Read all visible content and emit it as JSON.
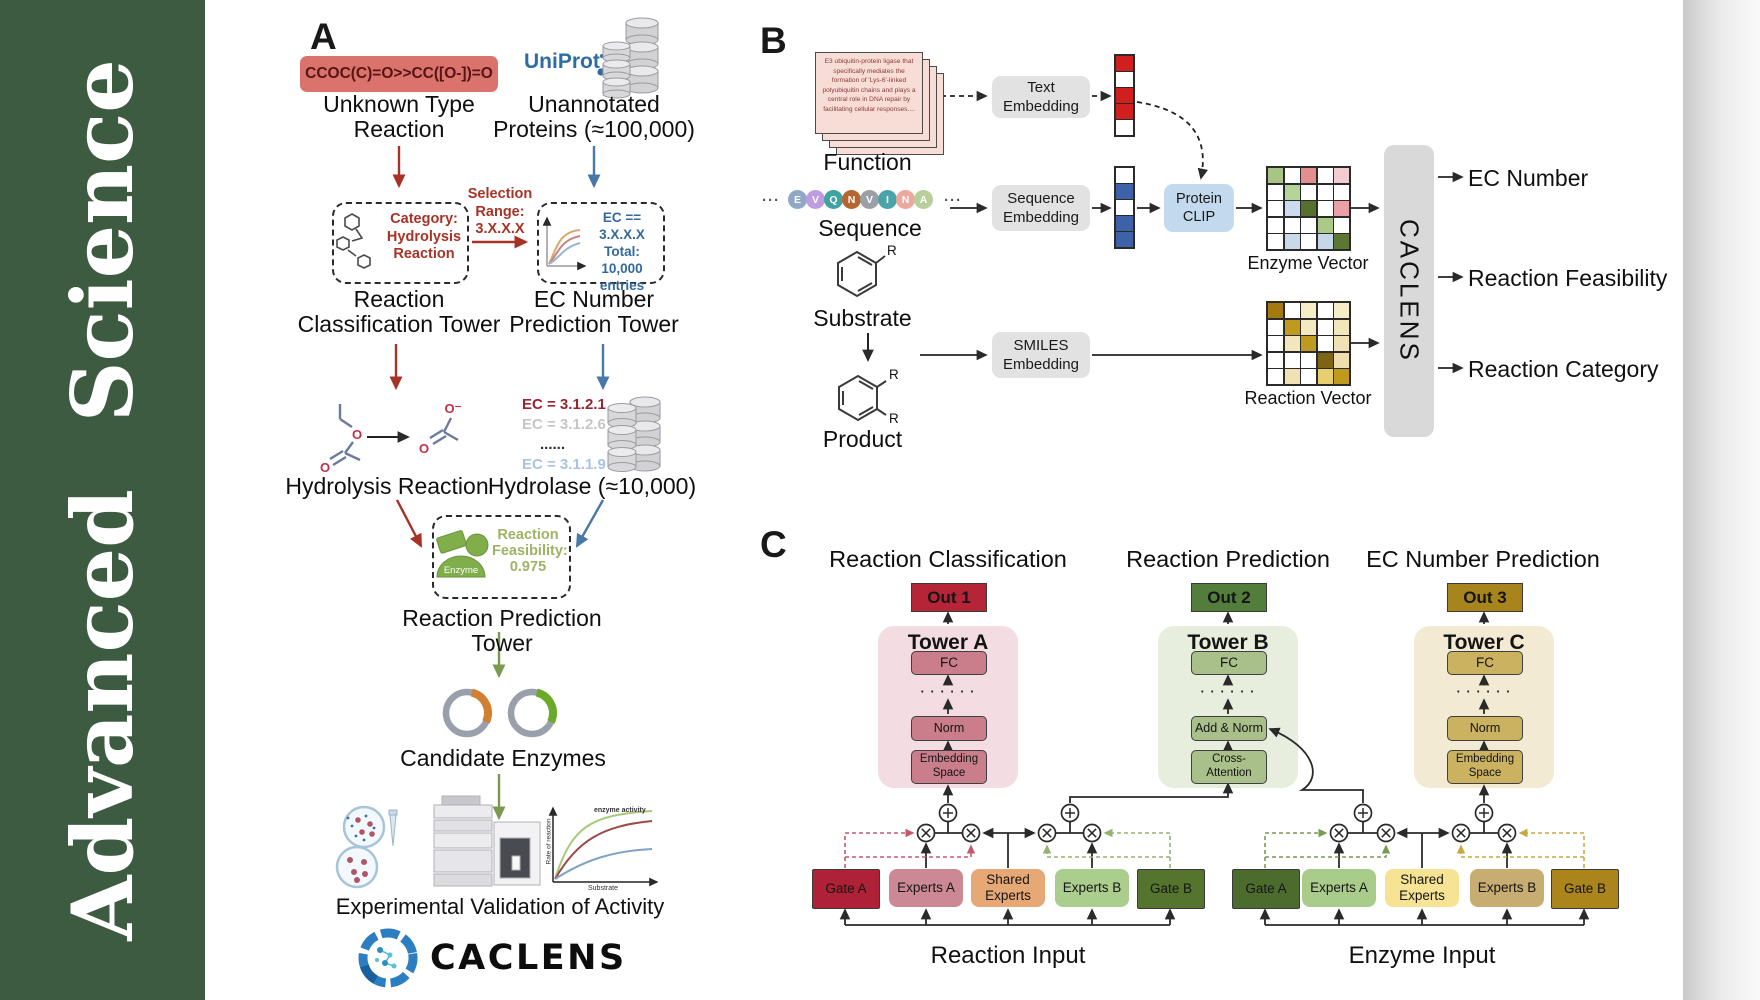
{
  "sidebar": {
    "journal": "Advanced Science",
    "bg": "#3d5b40"
  },
  "panelA": {
    "label": "A",
    "smiles": "CCOC(C)=O>>CC([O-])=O",
    "smiles_bg": "#d9736c",
    "unknown": [
      "Unknown Type",
      "Reaction"
    ],
    "uniprot": "UniProt",
    "unannotated": [
      "Unannotated",
      "Proteins (≈100,000)"
    ],
    "selection": [
      "Selection",
      "Range:",
      "3.X.X.X"
    ],
    "category": [
      "Category:",
      "Hydrolysis",
      "Reaction"
    ],
    "ec_box": [
      "EC == 3.X.X.X",
      "Total: 10,000",
      "entries"
    ],
    "tower_left": [
      "Reaction",
      "Classification Tower"
    ],
    "tower_right": [
      "EC Number",
      "Prediction Tower"
    ],
    "ec_list": [
      "EC = 3.1.2.1",
      "EC = 3.1.2.6",
      "......",
      "EC = 3.1.1.9"
    ],
    "ec_list_colors": [
      "#9b2430",
      "#c6c6c6",
      "#2a2a2a",
      "#a9c4e2"
    ],
    "hydrolysis": "Hydrolysis Reaction",
    "hydrolase": "Hydrolase (≈10,000)",
    "enzyme": "Enzyme",
    "feasibility": [
      "Reaction",
      "Feasibility:",
      "0.975"
    ],
    "tower_mid": "Reaction Prediction Tower",
    "candidate": "Candidate Enzymes",
    "graph": {
      "series": "enzyme activity",
      "ylabel": "Rate of reaction",
      "xlabel": "Substrate"
    },
    "validation": "Experimental Validation of Activity",
    "logo": "CACLENS",
    "atoms": {
      "o": "O",
      "o_minus": "O⁻"
    }
  },
  "panelB": {
    "label": "B",
    "card": "E3 ubiquitin-protein ligase that specifically mediates the formation of 'Lys-6'-linked polyubiquitin chains and plays a central role in DNA repair by facilitating cellular responses....",
    "function": "Function",
    "dots": "···",
    "residues": [
      "E",
      "V",
      "Q",
      "N",
      "V",
      "I",
      "N",
      "A"
    ],
    "residue_colors": [
      "#8fa8c8",
      "#bf9bdf",
      "#3fa3a0",
      "#b5652f",
      "#9aa0a6",
      "#4aa3a8",
      "#eca89c",
      "#b9cf9b"
    ],
    "sequence": "Sequence",
    "substrate": "Substrate",
    "product": "Product",
    "r": "R",
    "text_embedding": [
      "Text",
      "Embedding"
    ],
    "sequence_embedding": [
      "Sequence",
      "Embedding"
    ],
    "smiles_embedding": [
      "SMILES",
      "Embedding"
    ],
    "protein_clip": [
      "Protein",
      "CLIP"
    ],
    "embed_color": "#e2e2e2",
    "clip_color": "#c3d9ee",
    "caclens_color": "#d9d9d9",
    "text_vec": [
      "#cf1f1f",
      "#ffffff",
      "#cf1f1f",
      "#cf1f1f",
      "#ffffff"
    ],
    "seq_vec": [
      "#ffffff",
      "#3e62a8",
      "#ffffff",
      "#3e62a8",
      "#3e62a8"
    ],
    "enzyme_grid": [
      "#a9c583",
      "#ffffff",
      "#e48f8f",
      "#ffffff",
      "#f3cdd1",
      "#ffffff",
      "#b3d59a",
      "#ffffff",
      "#ffffff",
      "#ffffff",
      "#ffffff",
      "#ccdcee",
      "#55702f",
      "#ffffff",
      "#e9a0a6",
      "#ffffff",
      "#ffffff",
      "#ffffff",
      "#abc987",
      "#ffffff",
      "#ffffff",
      "#c9d9ea",
      "#ffffff",
      "#c4d6e8",
      "#5b7733"
    ],
    "reaction_grid": [
      "#a47a10",
      "#ffffff",
      "#f6ecc8",
      "#ffffff",
      "#f6ecc8",
      "#ffffff",
      "#bf9a1e",
      "#f4e8c0",
      "#ffffff",
      "#f2e6bc",
      "#ffffff",
      "#f2e6bc",
      "#bf9a1e",
      "#ffffff",
      "#f0e2b4",
      "#ffffff",
      "#ffffff",
      "#ffffff",
      "#7c6414",
      "#eeddae",
      "#ffffff",
      "#f0e2b4",
      "#ffffff",
      "#e7cf6e",
      "#bf9a1e"
    ],
    "enzyme_vector": "Enzyme Vector",
    "reaction_vector": "Reaction Vector",
    "caclens": "CACLENS",
    "outputs": [
      "EC Number",
      "Reaction Feasibility",
      "Reaction Category"
    ]
  },
  "panelC": {
    "label": "C",
    "towers": [
      {
        "header": "Reaction Classification",
        "out": "Out 1",
        "out_color": "#b62537",
        "name": "Tower A",
        "bg": "#f3dde2",
        "box_color": "#ca7d8b",
        "fc": "FC",
        "dots": "· · · · · ·",
        "mid": "Norm",
        "bottom1": "Embedding",
        "bottom2": "Space"
      },
      {
        "header": "Reaction Prediction",
        "out": "Out 2",
        "out_color": "#537d3b",
        "name": "Tower B",
        "bg": "#e7eede",
        "box_color": "#a9c08b",
        "fc": "FC",
        "dots": "· · · · · ·",
        "mid": "Add & Norm",
        "bottom1": "Cross-",
        "bottom2": "Attention"
      },
      {
        "header": "EC Number Prediction",
        "out": "Out 3",
        "out_color": "#a8851c",
        "name": "Tower C",
        "bg": "#f2ead3",
        "box_color": "#cbb260",
        "fc": "FC",
        "dots": "· · · · · ·",
        "mid": "Norm",
        "bottom1": "Embedding",
        "bottom2": "Space"
      }
    ],
    "groups": [
      {
        "label": "Reaction Input",
        "boxes": [
          "Gate A",
          "Experts A",
          "Shared Experts",
          "Experts B",
          "Gate B"
        ],
        "box_colors": [
          "#ae2136",
          "#cc8995",
          "#e6a875",
          "#abcd8d",
          "#55752f"
        ]
      },
      {
        "label": "Enzyme Input",
        "boxes": [
          "Gate A",
          "Experts A",
          "Shared Experts",
          "Experts B",
          "Gate B"
        ],
        "box_colors": [
          "#4c6c2e",
          "#a9cc8a",
          "#f6e494",
          "#c8ad72",
          "#ab841b"
        ]
      }
    ]
  }
}
